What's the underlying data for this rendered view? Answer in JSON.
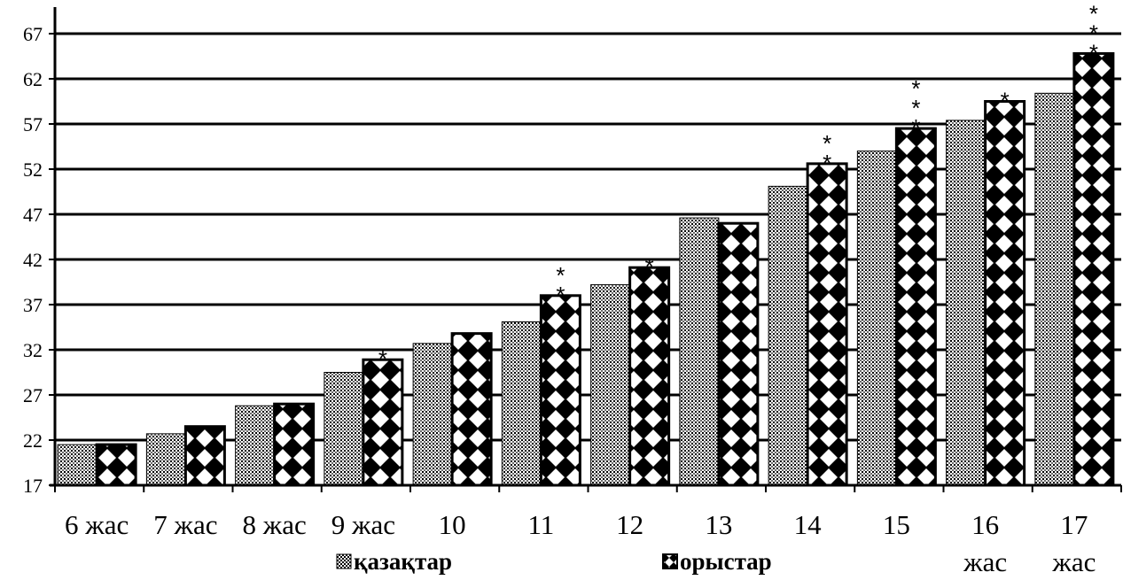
{
  "chart_data": {
    "type": "bar",
    "categories": [
      "6 жас",
      "7 жас",
      "8 жас",
      "9 жас",
      "10",
      "11",
      "12",
      "13",
      "14",
      "15",
      "16",
      "17"
    ],
    "category_sublabels": [
      "",
      "",
      "",
      "",
      "",
      "",
      "",
      "",
      "",
      "",
      "жас",
      "жас"
    ],
    "series": [
      {
        "name": "қазақтар",
        "values": [
          21.5,
          22.7,
          25.8,
          29.5,
          32.7,
          35.1,
          39.2,
          46.6,
          50.1,
          54.0,
          57.4,
          60.4
        ]
      },
      {
        "name": "орыстар",
        "values": [
          21.5,
          23.5,
          26.0,
          30.9,
          33.8,
          38.0,
          41.1,
          46.0,
          52.6,
          56.5,
          59.5,
          64.8
        ]
      }
    ],
    "significance": [
      "",
      "",
      "",
      "*",
      "",
      "**",
      "*",
      "",
      "**",
      "***",
      "*",
      "***"
    ],
    "yticks": [
      17,
      22,
      27,
      32,
      37,
      42,
      47,
      52,
      57,
      62,
      67
    ],
    "ylim": [
      17,
      70
    ],
    "grid": true,
    "legend_position": "bottom",
    "title": "",
    "xlabel": "",
    "ylabel": "",
    "colors": {
      "axis": "#000000",
      "bar_fill_dark": "#000000",
      "bar_fill_light": "#ffffff"
    },
    "patterns": [
      "fine-dots",
      "diamond-checker"
    ]
  }
}
